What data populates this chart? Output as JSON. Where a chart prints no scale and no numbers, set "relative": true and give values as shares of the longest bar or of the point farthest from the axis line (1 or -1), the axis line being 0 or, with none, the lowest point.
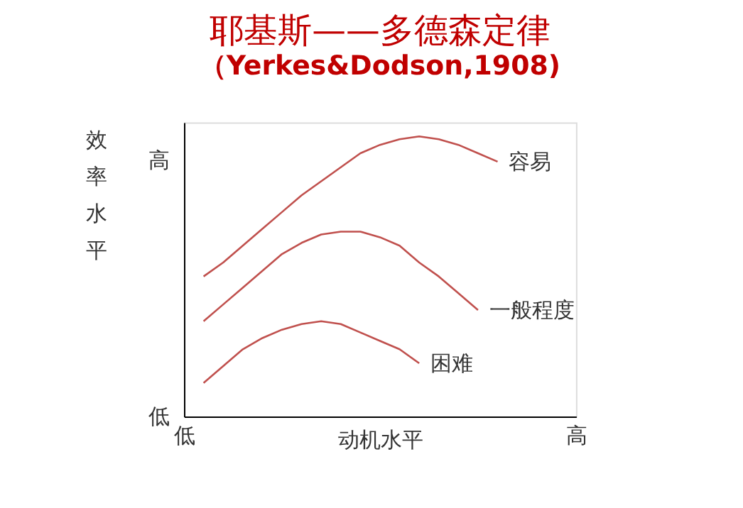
{
  "chart_data": {
    "type": "line",
    "title": "耶基斯——多德森定律",
    "subtitle": "（Yerkes&Dodson,1908)",
    "xlabel": "动机水平",
    "ylabel": "效率水平",
    "relative": true,
    "categories": [
      "低",
      null,
      null,
      null,
      null,
      null,
      null,
      null,
      null,
      null,
      null,
      null,
      null,
      null,
      null,
      null,
      null,
      null,
      null,
      null,
      "高"
    ],
    "annotations": [
      "高",
      "低"
    ],
    "grid": false,
    "legend": false,
    "marker": "none",
    "line_style": "solid",
    "series": [
      {
        "name": "容易",
        "color": "#c0504d",
        "values": [
          null,
          0.5,
          0.55,
          0.61,
          0.67,
          0.73,
          0.79,
          0.84,
          0.89,
          0.94,
          0.97,
          0.99,
          1.0,
          0.99,
          0.97,
          0.94,
          0.91,
          null,
          null,
          null,
          null
        ]
      },
      {
        "name": "一般程度",
        "color": "#c0504d",
        "values": [
          null,
          0.34,
          0.4,
          0.46,
          0.52,
          0.58,
          0.62,
          0.65,
          0.66,
          0.66,
          0.64,
          0.61,
          0.55,
          0.5,
          0.44,
          0.38,
          null,
          null,
          null,
          null,
          null
        ]
      },
      {
        "name": "困难",
        "color": "#c0504d",
        "values": [
          null,
          0.12,
          0.18,
          0.24,
          0.28,
          0.31,
          0.33,
          0.34,
          0.33,
          0.3,
          0.27,
          0.24,
          0.19,
          null,
          null,
          null,
          null,
          null,
          null,
          null,
          null
        ]
      }
    ]
  }
}
